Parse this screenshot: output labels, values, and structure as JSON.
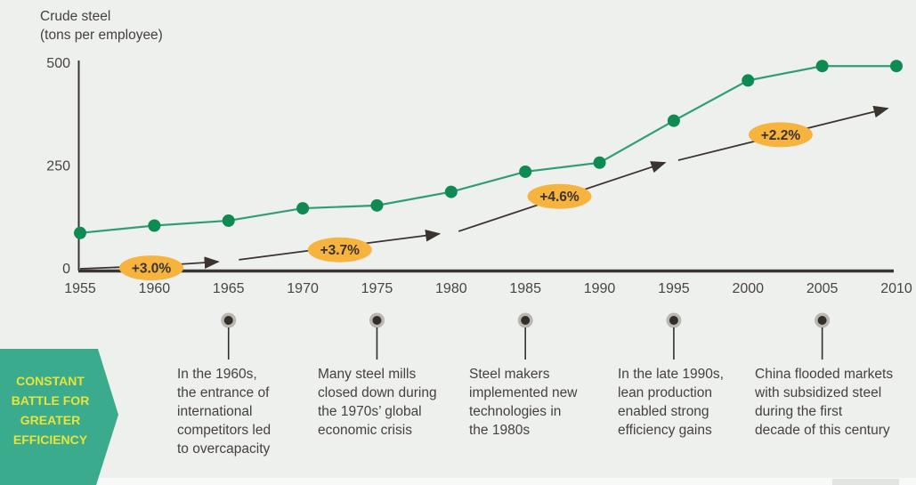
{
  "title": {
    "lines": [
      "Crude steel",
      "(tons per employee)"
    ]
  },
  "banner": {
    "lines": [
      "CONSTANT",
      "BATTLE FOR",
      "GREATER",
      "EFFICIENCY"
    ],
    "bg_color": "#3aab8c",
    "text_color": "#e9e438"
  },
  "chart_data": {
    "type": "line",
    "title": "Crude steel (tons per employee)",
    "xlabel": "",
    "ylabel": "Crude steel (tons per employee)",
    "xlim": [
      1955,
      2010
    ],
    "ylim": [
      0,
      500
    ],
    "x_ticks": [
      1955,
      1960,
      1965,
      1970,
      1975,
      1980,
      1985,
      1990,
      1995,
      2000,
      2005,
      2010
    ],
    "y_ticks": [
      0,
      250,
      500
    ],
    "grid": false,
    "legend": "none",
    "series": [
      {
        "name": "crude-steel-per-employee",
        "style": "line-with-dots",
        "line_color": "#2f9e74",
        "dot_color": "#0f8a52",
        "x": [
          1955,
          1960,
          1965,
          1970,
          1975,
          1980,
          1985,
          1990,
          1995,
          2000,
          2005,
          2010
        ],
        "values": [
          87,
          105,
          117,
          147,
          154,
          187,
          236,
          258,
          360,
          458,
          493,
          493
        ]
      },
      {
        "name": "productivity-growth-trend",
        "style": "arrow-segments",
        "color": "#3a3330",
        "segments": [
          [
            [
              1955,
              0
            ],
            [
              1960,
              7
            ],
            [
              1964.3,
              17
            ]
          ],
          [
            [
              1965.7,
              22
            ],
            [
              1979.2,
              85
            ]
          ],
          [
            [
              1980.5,
              91
            ],
            [
              1994.4,
              258
            ]
          ],
          [
            [
              1995.3,
              264
            ],
            [
              2009.4,
              390
            ]
          ]
        ]
      }
    ],
    "growth_labels": [
      {
        "label": "+3.0%",
        "year": 1959.8,
        "value": 2
      },
      {
        "label": "+3.7%",
        "year": 1972.5,
        "value": 46
      },
      {
        "label": "+4.6%",
        "year": 1987.3,
        "value": 176
      },
      {
        "label": "+2.2%",
        "year": 2002.2,
        "value": 326
      }
    ],
    "label_bg_color": "#f6b43e",
    "label_text_color": "#3a332e",
    "axis_color": "#3a3531",
    "tick_text_color": "#474543"
  },
  "timeline": {
    "marker_years": [
      1965,
      1975,
      1985,
      1995,
      2005
    ],
    "events": [
      {
        "lines": [
          "In the 1960s,",
          "the entrance of",
          "international",
          "competitors led",
          "to overcapacity"
        ]
      },
      {
        "lines": [
          "Many steel mills",
          "closed down during",
          "the 1970s’ global",
          "economic crisis"
        ]
      },
      {
        "lines": [
          "Steel makers",
          "implemented new",
          "technologies in",
          "the 1980s"
        ]
      },
      {
        "lines": [
          "In the late 1990s,",
          "lean production",
          "enabled strong",
          "efficiency gains"
        ]
      },
      {
        "lines": [
          "China flooded markets",
          "with subsidized steel",
          "during the first",
          "decade of this century"
        ]
      }
    ]
  }
}
